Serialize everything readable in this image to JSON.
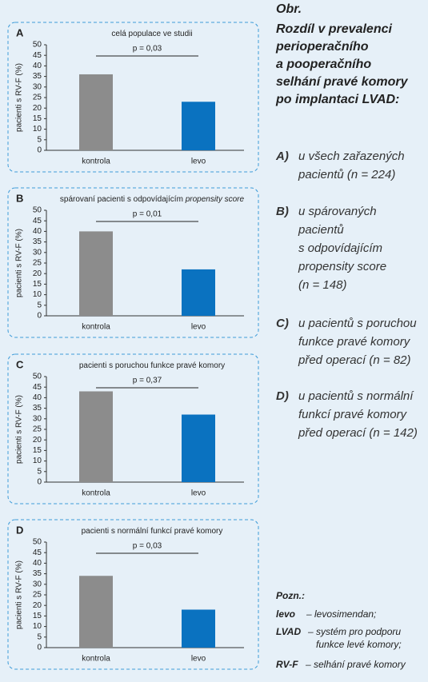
{
  "chart_data": [
    {
      "type": "bar",
      "panel_label": "A",
      "title": "celá populace ve studii",
      "annotation": "p = 0,03",
      "ylabel": "pacienti s RV-F (%)",
      "categories": [
        "kontrola",
        "levo"
      ],
      "values": [
        36,
        23
      ],
      "colors": [
        "#8c8c8c",
        "#0a72c0"
      ],
      "ylim": [
        0,
        50
      ],
      "yticks": [
        0,
        5,
        10,
        15,
        20,
        25,
        30,
        35,
        40,
        45,
        50
      ]
    },
    {
      "type": "bar",
      "panel_label": "B",
      "title": "spárovaní pacienti s odpovídajícím",
      "title_emphasis": "propensity score",
      "annotation": "p = 0,01",
      "ylabel": "pacienti s RV-F (%)",
      "categories": [
        "kontrola",
        "levo"
      ],
      "values": [
        40,
        22
      ],
      "colors": [
        "#8c8c8c",
        "#0a72c0"
      ],
      "ylim": [
        0,
        50
      ],
      "yticks": [
        0,
        5,
        10,
        15,
        20,
        25,
        30,
        35,
        40,
        45,
        50
      ]
    },
    {
      "type": "bar",
      "panel_label": "C",
      "title": "pacienti s poruchou funkce pravé komory",
      "annotation": "p = 0,37",
      "ylabel": "pacienti s RV-F (%)",
      "categories": [
        "kontrola",
        "levo"
      ],
      "values": [
        43,
        32
      ],
      "colors": [
        "#8c8c8c",
        "#0a72c0"
      ],
      "ylim": [
        0,
        50
      ],
      "yticks": [
        0,
        5,
        10,
        15,
        20,
        25,
        30,
        35,
        40,
        45,
        50
      ]
    },
    {
      "type": "bar",
      "panel_label": "D",
      "title": "pacienti s normální funkcí pravé komory",
      "annotation": "p = 0,03",
      "ylabel": "pacienti s RV-F (%)",
      "categories": [
        "kontrola",
        "levo"
      ],
      "values": [
        34,
        18
      ],
      "colors": [
        "#8c8c8c",
        "#0a72c0"
      ],
      "ylim": [
        0,
        50
      ],
      "yticks": [
        0,
        5,
        10,
        15,
        20,
        25,
        30,
        35,
        40,
        45,
        50
      ]
    }
  ],
  "caption": {
    "label": "Obr.",
    "title": [
      "Rozdíl v prevalenci",
      "perioperačního",
      "a pooperačního",
      "selhání pravé komory",
      "po implantaci LVAD:"
    ],
    "items": [
      {
        "label": "A)",
        "text": [
          "u všech zařazených",
          "pacientů (n = 224)"
        ]
      },
      {
        "label": "B)",
        "text": [
          "u spárovaných",
          "pacientů",
          "s odpovídajícím",
          "propensity score",
          "(n = 148)"
        ]
      },
      {
        "label": "C)",
        "text": [
          "u pacientů s poruchou",
          "funkce pravé komory",
          "před operací (n = 82)"
        ]
      },
      {
        "label": "D)",
        "text": [
          "u pacientů s normální",
          "funkcí pravé komory",
          "před operací (n = 142)"
        ]
      }
    ]
  },
  "notes": {
    "label": "Pozn.:",
    "items": [
      {
        "term": "levo",
        "text": [
          "– levosimendan;"
        ]
      },
      {
        "term": "LVAD",
        "text": [
          "– systém pro podporu",
          "funkce levé komory;"
        ]
      },
      {
        "term": "RV-F",
        "text": [
          "– selhání pravé komory"
        ]
      }
    ]
  }
}
